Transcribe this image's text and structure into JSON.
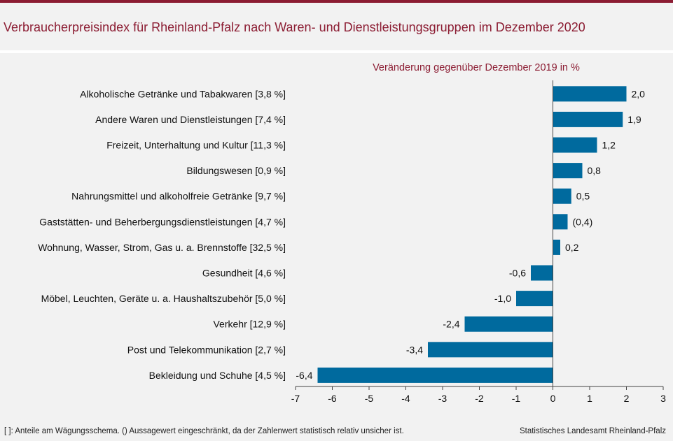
{
  "header": {
    "title": "Verbraucherpreisindex für Rheinland-Pfalz nach Waren- und Dienstleistungsgruppen im Dezember 2020"
  },
  "footer": {
    "note": "[ ]: Anteile am Wägungsschema. () Aussagewert eingeschränkt, da der Zahlenwert  statistisch relativ unsicher ist.",
    "source": "Statistisches Landesamt Rheinland-Pfalz"
  },
  "colors": {
    "bar": "#006a9e",
    "title": "#8c1d33",
    "subtitle": "#8c1d33"
  },
  "chart_data": {
    "type": "bar",
    "orientation": "horizontal",
    "subtitle": "Veränderung  gegenüber  Dezember 2019 in %",
    "categories": [
      "Alkoholische Getränke und Tabakwaren [3,8 %]",
      "Andere Waren und Dienstleistungen [7,4 %]",
      "Freizeit, Unterhaltung und Kultur [11,3 %]",
      "Bildungswesen [0,9 %]",
      "Nahrungsmittel und alkoholfreie Getränke [9,7 %]",
      "Gaststätten- und Beherbergungsdienstleistungen [4,7 %]",
      "Wohnung, Wasser, Strom, Gas u. a. Brennstoffe [32,5 %]",
      "Gesundheit [4,6 %]",
      "Möbel, Leuchten, Geräte u. a. Haushaltszubehör  [5,0 %]",
      "Verkehr [12,9 %]",
      "Post und Telekommunikation [2,7 %]",
      "Bekleidung und Schuhe [4,5 %]"
    ],
    "values": [
      2.0,
      1.9,
      1.2,
      0.8,
      0.5,
      0.4,
      0.2,
      -0.6,
      -1.0,
      -2.4,
      -3.4,
      -6.4
    ],
    "value_labels": [
      "2,0",
      "1,9",
      "1,2",
      "0,8",
      "0,5",
      "(0,4)",
      "0,2",
      "-0,6",
      "-1,0",
      "-2,4",
      "-3,4",
      "-6,4"
    ],
    "xlim": [
      -7,
      3
    ],
    "xticks": [
      "-7",
      "-6",
      "-5",
      "-4",
      "-3",
      "-2",
      "-1",
      "0",
      "1",
      "2",
      "3"
    ],
    "grid": false,
    "legend": "none"
  }
}
